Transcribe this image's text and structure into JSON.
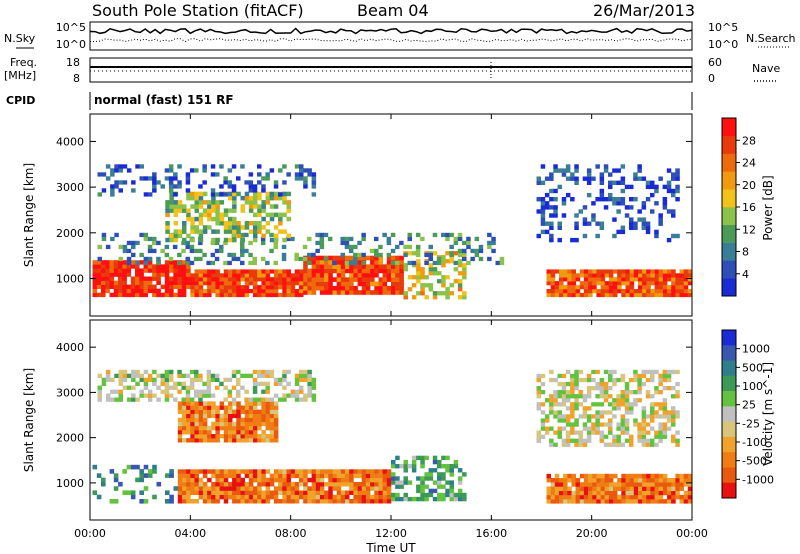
{
  "header": {
    "station": "South Pole Station (fitACF)",
    "beam": "Beam 04",
    "date": "26/Mar/2013"
  },
  "noise_panel": {
    "left_label": "N.Sky",
    "right_label": "N.Search",
    "tick_top": "10^5",
    "tick_bottom": "10^0"
  },
  "freq_panel": {
    "left_label": "Freq.",
    "left_unit": "[MHz]",
    "right_label": "Nave",
    "left_ticks": [
      "18",
      "8"
    ],
    "right_ticks": [
      "60",
      "0"
    ]
  },
  "cpid": {
    "label": "CPID",
    "value": "normal (fast) 151 RF"
  },
  "colors": {
    "power": [
      "#1a2bd6",
      "#2f4fb8",
      "#3a7d96",
      "#4c9a5a",
      "#8bc34a",
      "#f2c21b",
      "#f09a10",
      "#ef6a0c",
      "#e83a0a",
      "#ff1010"
    ],
    "velocity": [
      "#1a2bd6",
      "#3a57b0",
      "#2f7f8a",
      "#3c9a56",
      "#63c23f",
      "#c0c0c0",
      "#d8c47a",
      "#f0a22a",
      "#f07c14",
      "#ea5a0e",
      "#e81010"
    ]
  },
  "chart_data": [
    {
      "type": "heatmap",
      "title": "",
      "xlabel": "Time UT",
      "ylabel": "Slant Range [km]",
      "xlim": [
        "00:00",
        "24:00"
      ],
      "ylim": [
        180,
        4600
      ],
      "x_ticks": [
        "00:00",
        "04:00",
        "08:00",
        "12:00",
        "16:00",
        "20:00",
        "00:00"
      ],
      "y_ticks": [
        1000,
        2000,
        3000,
        4000
      ],
      "colorbar": {
        "label": "Power [dB]",
        "range": [
          0,
          32
        ],
        "ticks": [
          4,
          8,
          12,
          16,
          20,
          24,
          28
        ]
      },
      "regions": [
        {
          "t0": 0.1,
          "t1": 4.0,
          "r0": 600,
          "r1": 1400,
          "level": 0.9
        },
        {
          "t0": 4.0,
          "t1": 8.5,
          "r0": 600,
          "r1": 1200,
          "level": 0.85
        },
        {
          "t0": 8.5,
          "t1": 12.5,
          "r0": 650,
          "r1": 1500,
          "level": 0.85
        },
        {
          "t0": 12.5,
          "t1": 15.0,
          "r0": 550,
          "r1": 1600,
          "level": 0.55
        },
        {
          "t0": 18.2,
          "t1": 24.0,
          "r0": 600,
          "r1": 1200,
          "level": 0.8
        },
        {
          "t0": 0.3,
          "t1": 16.5,
          "r0": 1300,
          "r1": 2000,
          "level": 0.3
        },
        {
          "t0": 3.0,
          "t1": 8.0,
          "r0": 1800,
          "r1": 2900,
          "level": 0.45
        },
        {
          "t0": 0.3,
          "t1": 9.0,
          "r0": 2800,
          "r1": 3500,
          "level": 0.15
        },
        {
          "t0": 17.8,
          "t1": 23.5,
          "r0": 1800,
          "r1": 3500,
          "level": 0.12
        }
      ]
    },
    {
      "type": "heatmap",
      "title": "",
      "xlabel": "Time UT",
      "ylabel": "Slant Range [km]",
      "xlim": [
        "00:00",
        "24:00"
      ],
      "ylim": [
        180,
        4600
      ],
      "x_ticks": [
        "00:00",
        "04:00",
        "08:00",
        "12:00",
        "16:00",
        "20:00",
        "00:00"
      ],
      "y_ticks": [
        1000,
        2000,
        3000,
        4000
      ],
      "colorbar": {
        "label": "Velocity [m s^-1]",
        "ticks": [
          1000,
          500,
          100,
          25,
          -25,
          -100,
          -500,
          -1000
        ]
      },
      "regions": [
        {
          "t0": 0.1,
          "t1": 3.5,
          "r0": 550,
          "r1": 1400,
          "level": 0.28
        },
        {
          "t0": 3.5,
          "t1": 12.0,
          "r0": 550,
          "r1": 1300,
          "level": 0.8
        },
        {
          "t0": 12.0,
          "t1": 15.0,
          "r0": 600,
          "r1": 1600,
          "level": 0.35
        },
        {
          "t0": 18.2,
          "t1": 24.0,
          "r0": 550,
          "r1": 1200,
          "level": 0.8
        },
        {
          "t0": 3.5,
          "t1": 7.5,
          "r0": 1900,
          "r1": 2800,
          "level": 0.78
        },
        {
          "t0": 0.3,
          "t1": 9.0,
          "r0": 2800,
          "r1": 3500,
          "level": 0.5
        },
        {
          "t0": 17.8,
          "t1": 23.5,
          "r0": 1800,
          "r1": 3500,
          "level": 0.55
        }
      ]
    }
  ]
}
